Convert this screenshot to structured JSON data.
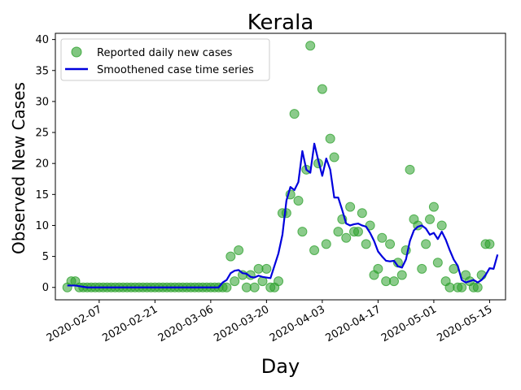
{
  "chart_data": {
    "type": "line",
    "title": "Kerala",
    "xlabel": "Day",
    "ylabel": "Observed New Cases",
    "x_start": "2020-01-30",
    "x_ticks": [
      "2020-02-07",
      "2020-02-21",
      "2020-03-06",
      "2020-03-20",
      "2020-04-03",
      "2020-04-17",
      "2020-05-01",
      "2020-05-15"
    ],
    "xlim": [
      "2020-01-27",
      "2020-05-19"
    ],
    "ylim": [
      -2,
      41
    ],
    "y_ticks": [
      0,
      5,
      10,
      15,
      20,
      25,
      30,
      35,
      40
    ],
    "legend_position": "top-left",
    "series": [
      {
        "name": "Reported daily new cases",
        "kind": "scatter",
        "color": "#2ca02c",
        "values": [
          0,
          1,
          1,
          0,
          0,
          0,
          0,
          0,
          0,
          0,
          0,
          0,
          0,
          0,
          0,
          0,
          0,
          0,
          0,
          0,
          0,
          0,
          0,
          0,
          0,
          0,
          0,
          0,
          0,
          0,
          0,
          0,
          0,
          0,
          0,
          0,
          0,
          0,
          0,
          0,
          0,
          5,
          1,
          6,
          2,
          0,
          2,
          0,
          3,
          1,
          3,
          0,
          0,
          1,
          12,
          12,
          15,
          28,
          14,
          9,
          19,
          39,
          6,
          20,
          32,
          7,
          24,
          21,
          9,
          11,
          8,
          13,
          9,
          9,
          12,
          7,
          10,
          2,
          3,
          8,
          1,
          7,
          1,
          4,
          2,
          6,
          19,
          11,
          10,
          3,
          7,
          11,
          13,
          4,
          10,
          1,
          0,
          3,
          0,
          0,
          2,
          1,
          0,
          0,
          2,
          7,
          7
        ]
      },
      {
        "name": "Smoothened case time series",
        "kind": "line",
        "color": "#0000dd",
        "values": [
          0.3,
          0.3,
          0.3,
          0.2,
          0.1,
          0,
          0,
          0,
          0,
          0,
          0,
          0,
          0,
          0,
          0,
          0,
          0,
          0,
          0,
          0,
          0,
          0,
          0,
          0,
          0,
          0,
          0,
          0,
          0,
          0,
          0,
          0,
          0,
          0,
          0,
          0,
          0,
          0,
          0,
          0.8,
          1.2,
          2.3,
          2.7,
          2.8,
          2.3,
          2.2,
          1.7,
          1.6,
          1.9,
          1.7,
          1.6,
          1.5,
          3.5,
          5.5,
          8.5,
          14,
          16.2,
          15.7,
          17,
          22,
          19,
          18.5,
          23.2,
          20.5,
          18,
          20.8,
          19,
          14.5,
          14.5,
          12.5,
          10.3,
          10,
          10.2,
          10.3,
          10,
          9.8,
          8.8,
          7.5,
          5.8,
          5,
          4.3,
          4.2,
          4.3,
          3.4,
          3.2,
          4.5,
          7.5,
          9.2,
          9.8,
          10,
          9.5,
          8.5,
          8.8,
          7.8,
          9,
          7.7,
          6,
          4.5,
          3.5,
          1.2,
          0.8,
          1,
          1.2,
          0.8,
          1.2,
          2,
          3.1,
          3,
          5.3
        ]
      }
    ]
  }
}
